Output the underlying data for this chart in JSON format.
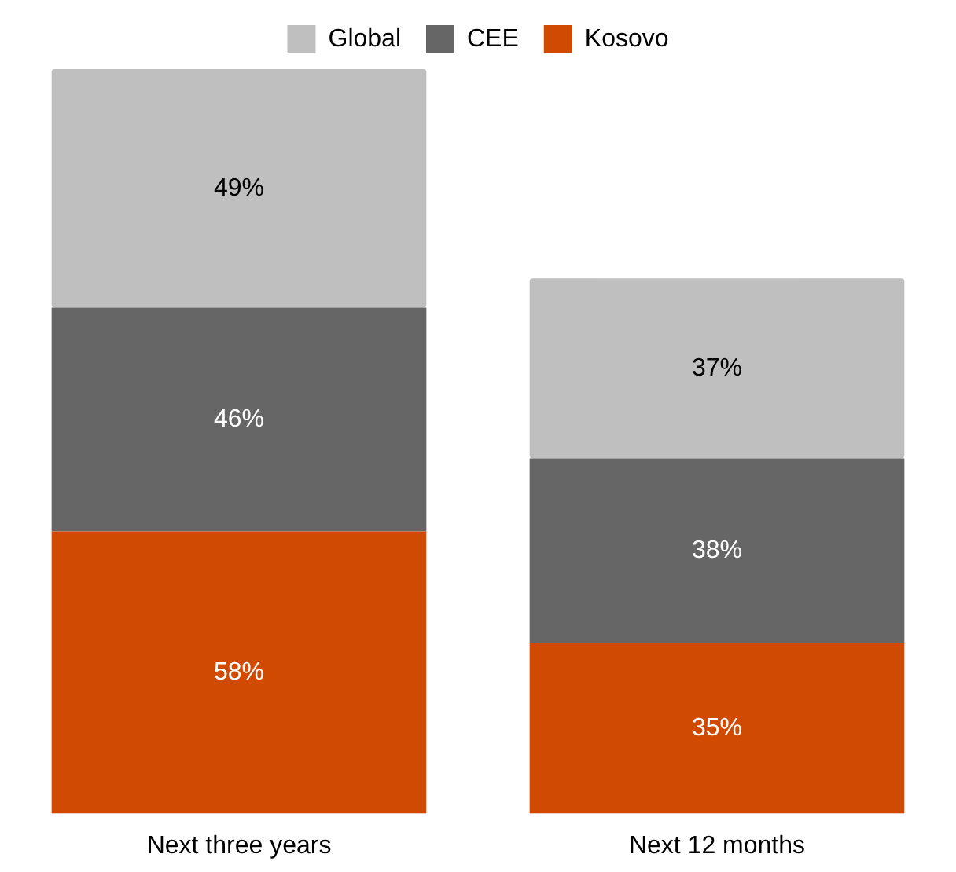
{
  "chart_data": {
    "type": "bar",
    "stacked": true,
    "categories": [
      "Next three years",
      "Next 12 months"
    ],
    "series": [
      {
        "name": "Kosovo",
        "color": "#d04a02",
        "values": [
          58,
          35
        ],
        "value_labels": [
          "58%",
          "35%"
        ]
      },
      {
        "name": "CEE",
        "color": "#666666",
        "values": [
          46,
          38
        ],
        "value_labels": [
          "46%",
          "38%"
        ]
      },
      {
        "name": "Global",
        "color": "#bfbfbf",
        "values": [
          49,
          37
        ],
        "value_labels": [
          "49%",
          "37%"
        ]
      }
    ],
    "legend": "top"
  }
}
